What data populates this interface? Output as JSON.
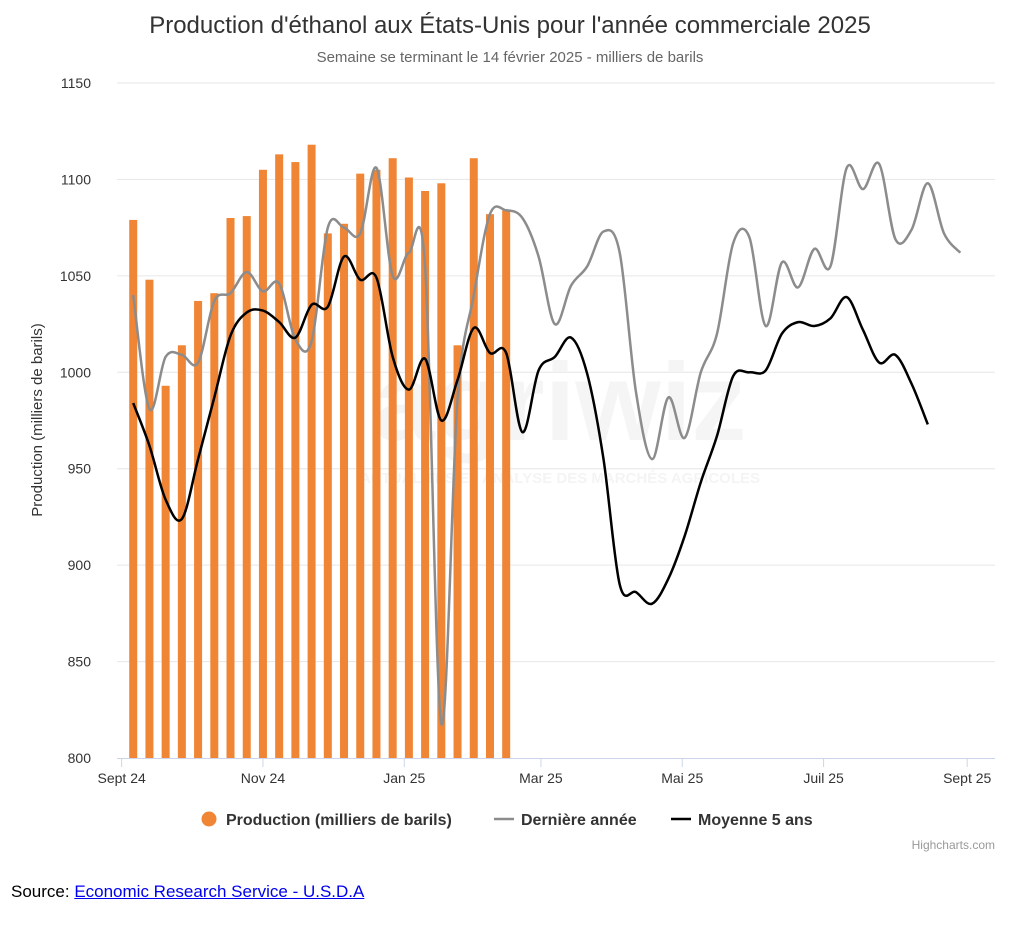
{
  "chart_data": {
    "type": "bar",
    "title": "Production d'éthanol aux États-Unis pour l'année commerciale 2025",
    "subtitle": "Semaine se terminant le 14 février 2025 - milliers de barils",
    "ylabel": "Production (milliers de barils)",
    "xlabel": "",
    "ylim": [
      800,
      1150
    ],
    "yticks": [
      800,
      850,
      900,
      950,
      1000,
      1050,
      1100,
      1150
    ],
    "xrange": [
      "2024-08-30",
      "2025-09-13"
    ],
    "xticks": [
      {
        "date": "2024-09-01",
        "label": "Sept 24"
      },
      {
        "date": "2024-11-01",
        "label": "Nov 24"
      },
      {
        "date": "2025-01-01",
        "label": "Jan 25"
      },
      {
        "date": "2025-03-01",
        "label": "Mar 25"
      },
      {
        "date": "2025-05-01",
        "label": "Mai 25"
      },
      {
        "date": "2025-07-01",
        "label": "Juil 25"
      },
      {
        "date": "2025-09-01",
        "label": "Sept 25"
      }
    ],
    "grid": true,
    "legend_position": "bottom-center",
    "colors": {
      "production": "#ef8535",
      "last_year": "#8c8c8c",
      "five_year": "#000000",
      "grid": "#e6e6e6",
      "axis": "#ccd6eb"
    },
    "series": [
      {
        "name": "Production (milliers de barils)",
        "kind": "bar",
        "points": [
          [
            "2024-09-06",
            1079
          ],
          [
            "2024-09-13",
            1048
          ],
          [
            "2024-09-20",
            993
          ],
          [
            "2024-09-27",
            1014
          ],
          [
            "2024-10-04",
            1037
          ],
          [
            "2024-10-11",
            1041
          ],
          [
            "2024-10-18",
            1080
          ],
          [
            "2024-10-25",
            1081
          ],
          [
            "2024-11-01",
            1105
          ],
          [
            "2024-11-08",
            1113
          ],
          [
            "2024-11-15",
            1109
          ],
          [
            "2024-11-22",
            1118
          ],
          [
            "2024-11-29",
            1072
          ],
          [
            "2024-12-06",
            1077
          ],
          [
            "2024-12-13",
            1103
          ],
          [
            "2024-12-20",
            1105
          ],
          [
            "2024-12-27",
            1111
          ],
          [
            "2025-01-03",
            1101
          ],
          [
            "2025-01-10",
            1094
          ],
          [
            "2025-01-17",
            1098
          ],
          [
            "2025-01-24",
            1014
          ],
          [
            "2025-01-31",
            1111
          ],
          [
            "2025-02-07",
            1082
          ],
          [
            "2025-02-14",
            1084
          ]
        ]
      },
      {
        "name": "Dernière année",
        "kind": "line",
        "points": [
          [
            "2024-09-06",
            1040
          ],
          [
            "2024-09-13",
            981
          ],
          [
            "2024-09-20",
            1008
          ],
          [
            "2024-09-27",
            1009
          ],
          [
            "2024-10-04",
            1005
          ],
          [
            "2024-10-11",
            1037
          ],
          [
            "2024-10-18",
            1041
          ],
          [
            "2024-10-25",
            1052
          ],
          [
            "2024-11-01",
            1042
          ],
          [
            "2024-11-08",
            1046
          ],
          [
            "2024-11-15",
            1017
          ],
          [
            "2024-11-22",
            1016
          ],
          [
            "2024-11-29",
            1075
          ],
          [
            "2024-12-06",
            1075
          ],
          [
            "2024-12-13",
            1072
          ],
          [
            "2024-12-20",
            1106
          ],
          [
            "2024-12-27",
            1050
          ],
          [
            "2025-01-03",
            1062
          ],
          [
            "2025-01-10",
            1055
          ],
          [
            "2025-01-17",
            818
          ],
          [
            "2025-01-24",
            986
          ],
          [
            "2025-01-31",
            1040
          ],
          [
            "2025-02-07",
            1082
          ],
          [
            "2025-02-14",
            1084
          ],
          [
            "2025-02-21",
            1080
          ],
          [
            "2025-02-28",
            1060
          ],
          [
            "2025-03-07",
            1025
          ],
          [
            "2025-03-14",
            1045
          ],
          [
            "2025-03-21",
            1055
          ],
          [
            "2025-03-28",
            1073
          ],
          [
            "2025-04-04",
            1062
          ],
          [
            "2025-04-11",
            990
          ],
          [
            "2025-04-18",
            955
          ],
          [
            "2025-04-25",
            987
          ],
          [
            "2025-05-02",
            966
          ],
          [
            "2025-05-09",
            1000
          ],
          [
            "2025-05-16",
            1020
          ],
          [
            "2025-05-23",
            1067
          ],
          [
            "2025-05-30",
            1070
          ],
          [
            "2025-06-06",
            1024
          ],
          [
            "2025-06-13",
            1057
          ],
          [
            "2025-06-20",
            1044
          ],
          [
            "2025-06-27",
            1064
          ],
          [
            "2025-07-04",
            1055
          ],
          [
            "2025-07-11",
            1106
          ],
          [
            "2025-07-18",
            1095
          ],
          [
            "2025-07-25",
            1108
          ],
          [
            "2025-08-01",
            1069
          ],
          [
            "2025-08-08",
            1074
          ],
          [
            "2025-08-15",
            1098
          ],
          [
            "2025-08-22",
            1072
          ],
          [
            "2025-08-29",
            1062
          ]
        ]
      },
      {
        "name": "Moyenne 5 ans",
        "kind": "line",
        "points": [
          [
            "2024-09-06",
            984
          ],
          [
            "2024-09-13",
            962
          ],
          [
            "2024-09-20",
            934
          ],
          [
            "2024-09-27",
            924
          ],
          [
            "2024-10-04",
            955
          ],
          [
            "2024-10-11",
            987
          ],
          [
            "2024-10-18",
            1019
          ],
          [
            "2024-10-25",
            1031
          ],
          [
            "2024-11-01",
            1032
          ],
          [
            "2024-11-08",
            1026
          ],
          [
            "2024-11-15",
            1018
          ],
          [
            "2024-11-22",
            1035
          ],
          [
            "2024-11-29",
            1034
          ],
          [
            "2024-12-06",
            1060
          ],
          [
            "2024-12-13",
            1048
          ],
          [
            "2024-12-20",
            1049
          ],
          [
            "2024-12-27",
            1008
          ],
          [
            "2025-01-03",
            991
          ],
          [
            "2025-01-10",
            1007
          ],
          [
            "2025-01-17",
            975
          ],
          [
            "2025-01-24",
            996
          ],
          [
            "2025-01-31",
            1023
          ],
          [
            "2025-02-07",
            1010
          ],
          [
            "2025-02-14",
            1010
          ],
          [
            "2025-02-21",
            969
          ],
          [
            "2025-02-28",
            1001
          ],
          [
            "2025-03-07",
            1008
          ],
          [
            "2025-03-14",
            1018
          ],
          [
            "2025-03-21",
            999
          ],
          [
            "2025-03-28",
            955
          ],
          [
            "2025-04-04",
            890
          ],
          [
            "2025-04-11",
            886
          ],
          [
            "2025-04-18",
            880
          ],
          [
            "2025-04-25",
            893
          ],
          [
            "2025-05-02",
            915
          ],
          [
            "2025-05-09",
            943
          ],
          [
            "2025-05-16",
            967
          ],
          [
            "2025-05-23",
            998
          ],
          [
            "2025-05-30",
            1000
          ],
          [
            "2025-06-06",
            1001
          ],
          [
            "2025-06-13",
            1020
          ],
          [
            "2025-06-20",
            1026
          ],
          [
            "2025-06-27",
            1024
          ],
          [
            "2025-07-04",
            1028
          ],
          [
            "2025-07-11",
            1039
          ],
          [
            "2025-07-18",
            1022
          ],
          [
            "2025-07-25",
            1005
          ],
          [
            "2025-08-01",
            1009
          ],
          [
            "2025-08-08",
            994
          ],
          [
            "2025-08-15",
            973
          ]
        ]
      }
    ]
  },
  "watermark": {
    "logo_text": "agriwiz",
    "tagline": "ACTUALITÉS ET ANALYSE DES MARCHÉS AGRICOLES"
  },
  "credits": "Highcharts.com",
  "source": {
    "label": "Source: ",
    "link_text": "Economic Research Service - U.S.D.A"
  }
}
